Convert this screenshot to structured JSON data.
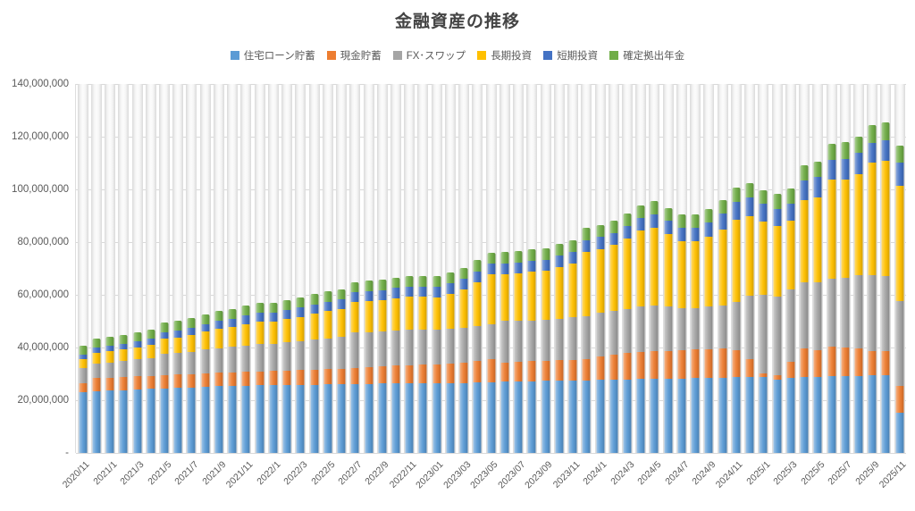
{
  "chart_data": {
    "type": "bar",
    "stacked": true,
    "title": "金融資産の推移",
    "legend_position": "top",
    "grid": true,
    "unit": "JPY",
    "unit_multiplier": 1000000,
    "ylim": [
      0,
      140000000
    ],
    "y_ticks": [
      {
        "label": "140,000,000",
        "value": 140000000
      },
      {
        "label": "120,000,000",
        "value": 120000000
      },
      {
        "label": "100,000,000",
        "value": 100000000
      },
      {
        "label": "80,000,000",
        "value": 80000000
      },
      {
        "label": "60,000,000",
        "value": 60000000
      },
      {
        "label": "40,000,000",
        "value": 40000000
      },
      {
        "label": "20,000,000",
        "value": 20000000
      },
      {
        "label": "-",
        "value": 0
      }
    ],
    "x_tick_every": 2,
    "categories": [
      "2020/11",
      "2020/12",
      "2021/1",
      "2021/2",
      "2021/3",
      "2021/4",
      "2021/5",
      "2021/6",
      "2021/7",
      "2021/8",
      "2021/9",
      "2021/10",
      "2021/11",
      "2021/12",
      "2022/1",
      "2022/2",
      "2022/3",
      "2022/4",
      "2022/5",
      "2022/6",
      "2022/7",
      "2022/8",
      "2022/9",
      "2022/10",
      "2022/11",
      "2022/12",
      "2023/01",
      "2023/02",
      "2023/03",
      "2023/04",
      "2023/05",
      "2023/06",
      "2023/07",
      "2023/08",
      "2023/09",
      "2023/10",
      "2023/11",
      "2023/12",
      "2024/1",
      "2024/2",
      "2024/3",
      "2024/4",
      "2024/5",
      "2024/6",
      "2024/7",
      "2024/8",
      "2024/9",
      "2024/10",
      "2024/11",
      "2024/12",
      "2025/1",
      "2025/2",
      "2025/3",
      "2025/4",
      "2025/5",
      "2025/6",
      "2025/7",
      "2025/8",
      "2025/9",
      "2025/10",
      "2025/11"
    ],
    "series": [
      {
        "name": "住宅ローン貯蓄",
        "color": "#5B9BD5",
        "values_millions": [
          23.0,
          23.4,
          23.7,
          23.9,
          24.1,
          24.3,
          24.5,
          24.7,
          24.9,
          25.1,
          25.3,
          25.4,
          25.5,
          25.6,
          25.6,
          25.7,
          25.8,
          25.9,
          26.0,
          26.0,
          26.1,
          26.2,
          26.3,
          26.4,
          26.4,
          26.5,
          26.5,
          26.6,
          26.6,
          26.7,
          26.8,
          27.0,
          27.1,
          27.2,
          27.3,
          27.4,
          27.5,
          27.6,
          27.7,
          27.8,
          27.9,
          28.0,
          28.1,
          28.2,
          28.3,
          28.4,
          28.5,
          28.6,
          28.7,
          28.8,
          28.8,
          27.8,
          28.5,
          28.8,
          28.9,
          29.0,
          29.1,
          29.3,
          29.5,
          29.6,
          15.3
        ]
      },
      {
        "name": "現金貯蓄",
        "color": "#ED7D31",
        "values_millions": [
          3.4,
          5.1,
          4.7,
          4.8,
          4.9,
          5.0,
          5.0,
          5.0,
          5.0,
          5.1,
          5.2,
          5.2,
          5.3,
          5.4,
          5.5,
          5.6,
          5.7,
          5.8,
          5.9,
          6.0,
          6.1,
          6.3,
          6.5,
          6.7,
          6.9,
          7.0,
          7.2,
          7.4,
          7.7,
          8.2,
          8.8,
          7.4,
          7.5,
          7.6,
          7.7,
          7.8,
          7.9,
          8.0,
          9.0,
          9.5,
          10.0,
          10.3,
          10.5,
          10.6,
          10.8,
          10.9,
          10.9,
          11.0,
          10.2,
          6.8,
          1.4,
          1.7,
          6.1,
          10.8,
          10.2,
          11.2,
          10.8,
          10.5,
          9.2,
          9.0,
          10.2
        ]
      },
      {
        "name": "FX･スワップ",
        "color": "#A5A5A5",
        "values_millions": [
          5.8,
          5.4,
          6.0,
          6.2,
          6.5,
          6.8,
          8.0,
          8.2,
          8.5,
          9.0,
          9.3,
          9.6,
          9.9,
          10.3,
          10.4,
          10.6,
          10.8,
          11.2,
          11.6,
          12.0,
          13.6,
          13.4,
          13.2,
          13.3,
          13.4,
          13.2,
          13.0,
          13.1,
          13.2,
          13.2,
          13.2,
          15.9,
          15.7,
          15.5,
          15.6,
          15.8,
          16.0,
          16.2,
          16.4,
          16.6,
          16.8,
          17.2,
          17.5,
          16.8,
          15.9,
          15.7,
          16.2,
          16.5,
          18.5,
          24.0,
          29.8,
          30.0,
          27.4,
          25.0,
          25.5,
          26.0,
          26.5,
          27.5,
          28.8,
          28.6,
          32.2
        ]
      },
      {
        "name": "長期投資",
        "color": "#FFC000",
        "values_millions": [
          3.4,
          4.1,
          4.1,
          4.3,
          4.6,
          4.9,
          5.8,
          6.0,
          6.3,
          6.8,
          7.3,
          7.7,
          8.2,
          8.7,
          8.5,
          8.8,
          9.3,
          9.9,
          10.3,
          10.7,
          11.5,
          11.8,
          12.0,
          12.4,
          12.6,
          12.5,
          12.4,
          13.2,
          14.6,
          16.8,
          19.0,
          17.6,
          17.9,
          18.4,
          18.6,
          19.5,
          20.6,
          24.6,
          24.3,
          25.0,
          26.6,
          28.9,
          29.5,
          27.3,
          25.3,
          25.2,
          26.5,
          28.8,
          31.0,
          30.3,
          27.8,
          26.6,
          26.0,
          31.5,
          32.5,
          37.5,
          37.5,
          38.5,
          42.7,
          43.5,
          43.7
        ]
      },
      {
        "name": "短期投資",
        "color": "#4472C4",
        "values_millions": [
          1.7,
          2.0,
          2.1,
          2.2,
          2.3,
          2.4,
          2.6,
          2.7,
          2.8,
          2.9,
          3.0,
          3.1,
          3.2,
          3.3,
          3.3,
          3.4,
          3.5,
          3.5,
          3.6,
          3.6,
          3.7,
          3.7,
          3.8,
          3.8,
          3.9,
          3.9,
          3.9,
          4.0,
          4.0,
          4.0,
          4.1,
          4.1,
          4.1,
          4.2,
          4.2,
          4.3,
          4.3,
          4.4,
          4.5,
          4.6,
          4.7,
          4.8,
          5.0,
          5.1,
          5.2,
          5.3,
          5.5,
          6.0,
          7.0,
          7.0,
          6.8,
          6.5,
          6.6,
          7.2,
          7.5,
          7.6,
          7.8,
          8.0,
          7.5,
          8.0,
          8.8
        ]
      },
      {
        "name": "確定拠出年金",
        "color": "#70AD47",
        "values_millions": [
          3.4,
          3.4,
          3.4,
          3.5,
          3.5,
          3.5,
          3.6,
          3.6,
          3.6,
          3.7,
          3.7,
          3.7,
          3.7,
          3.8,
          3.8,
          3.8,
          3.8,
          3.9,
          3.9,
          3.9,
          3.9,
          4.0,
          4.0,
          4.0,
          4.0,
          4.1,
          4.1,
          4.1,
          4.2,
          4.2,
          4.2,
          4.3,
          4.3,
          4.3,
          4.4,
          4.4,
          4.5,
          4.5,
          4.6,
          4.6,
          4.7,
          4.8,
          4.9,
          4.9,
          4.9,
          5.0,
          5.0,
          5.1,
          5.2,
          5.5,
          5.0,
          5.6,
          5.8,
          5.9,
          6.0,
          6.1,
          6.2,
          6.3,
          6.8,
          6.7,
          6.4
        ]
      }
    ]
  }
}
